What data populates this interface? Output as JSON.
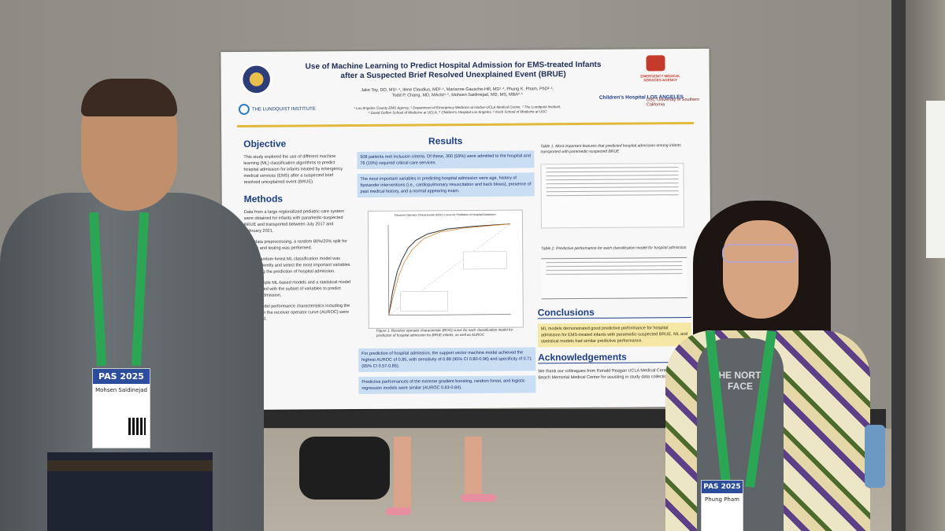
{
  "poster": {
    "title_line1": "Use of Machine Learning to Predict Hospital Admission for EMS-treated Infants",
    "title_line2": "after a Suspected Brief Resolved Unexplained Event (BRUE)",
    "authors_line1": "Jake Toy, DO, MS¹·⁴, Ilene Claudius, MD²·⁴, Marianne Gausche-Hill, MD¹·⁴, Phung K. Pham, PhD²·⁴,",
    "authors_line2": "Todd P. Chang, MD, MAcM⁴·⁵, Mohsen Saidinejad, MD, MS, MBA²·⁴",
    "affiliations_line1": "¹ Los Angeles County EMS Agency, ² Department of Emergency Medicine at Harbor-UCLA Medical Center, ³ The Lundquist Institute,",
    "affiliations_line2": "⁴ David Geffen School of Medicine at UCLA, ⁵ Children's Hospital Los Angeles, ⁶ Keck School of Medicine at USC",
    "logo_lundquist": "THE LUNDQUIST INSTITUTE",
    "logo_ems": "EMERGENCY MEDICAL SERVICES AGENCY",
    "logo_chla": "Children's Hospital LOS ANGELES",
    "logo_usc": "USC University of Southern California",
    "objective_title": "Objective",
    "objective_text": "This study explored the use of different machine learning (ML) classification algorithms to predict hospital admission for infants treated by emergency medical services (EMS) after a suspected brief resolved unexplained event (BRUE).",
    "methods_title": "Methods",
    "methods_p1": "Data from a large regionalized pediatric care system were obtained for infants with paramedic-suspected BRUE and transported between July 2017 and February 2021.",
    "methods_p2": "After data preprocessing, a random 80%/20% split for training and testing was performed.",
    "methods_p3": "First, a random forest ML classification model was used to identify and select the most important variables influencing the prediction of hospital admission.",
    "methods_p4": "Next, multiple ML-based models and a statistical model were trained with the subset of variables to predict hospital admission.",
    "methods_p5": "Lastly, model performance characteristics including the area under the receiver operator curve (AUROC) were interpreted.",
    "results_title": "Results",
    "results_box1": "508 patients met inclusion criteria. Of these, 300 (59%) were admitted to the hospital and 76 (15%) required critical care services.",
    "results_box2": "The most important variables in predicting hospital admission were age, history of bystander interventions (i.e., cardiopulmonary resuscitation and back blows), presence of past medical history, and a normal appearing exam.",
    "roc_title": "Receiver Operator Characteristic (ROC) Curve for Prediction of Hospital Admission",
    "figure1_caption": "Figure 1. Receiver operator characteristic (ROC) curve for each classification model for prediction of hospital admission for BRUE infants, as well as AUROC",
    "results_box3": "For prediction of hospital admission, the support vector machine model achieved the highest AUROC of 0.85, with sensitivity of 0.88 (95% CI 0.80-0.96) and specificity of 0.71 (95% CI 0.57-0.85).",
    "results_box4": "Predictive performances of the extreme gradient boosting, random forest, and logistic regression models were similar (AUROC 0.83-0.84).",
    "table1_caption": "Table 1. Most important features that predicted hospital admission among infants transported with paramedic-suspected BRUE",
    "table2_caption": "Table 2. Predictive performance for each classification model for hospital admission",
    "conclusions_title": "Conclusions",
    "conclusions_text": "ML models demonstrated good predictive performance for hospital admission for EMS-treated infants with paramedic-suspected BRUE. ML and statistical models had similar predictive performance.",
    "ack_title": "Acknowledgements",
    "ack_text": "We thank our colleagues from Ronald Reagan UCLA Medical Center and Long Beach Memorial Medical Center for assisting in study data collection."
  },
  "badges": {
    "left_event": "PAS 2025",
    "left_name": "Mohsen Saidinejad",
    "right_event": "PAS 2025",
    "right_name": "Phung Pham"
  },
  "shirt": {
    "text": "THE NORTH FACE"
  },
  "colors": {
    "poster_navy": "#1d3f85",
    "accent_gold": "#e2b93b",
    "lanyard_green": "#2aa655",
    "pas_blue": "#2b4d9c"
  }
}
